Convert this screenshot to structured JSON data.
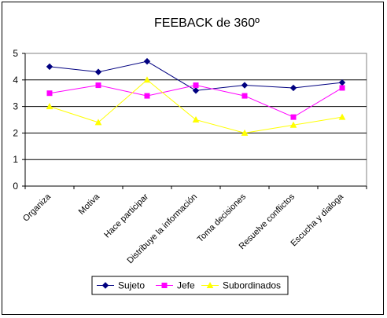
{
  "chart_data": {
    "type": "line",
    "title": "FEEBACK de 360º",
    "xlabel": "",
    "ylabel": "",
    "ylim": [
      0,
      5
    ],
    "yticks": [
      0,
      1,
      2,
      3,
      4,
      5
    ],
    "grid": true,
    "legend": "bottom",
    "categories": [
      "Organiza",
      "Motiva",
      "Hace participar",
      "Distribuye la información",
      "Toma decisiones",
      "Resuelve conflictos",
      "Escucha y dialoga"
    ],
    "series": [
      {
        "name": "Sujeto",
        "values": [
          4.5,
          4.3,
          4.7,
          3.6,
          3.8,
          3.7,
          3.9
        ],
        "color": "#000080",
        "marker": "diamond"
      },
      {
        "name": "Jefe",
        "values": [
          3.5,
          3.8,
          3.4,
          3.8,
          3.4,
          2.6,
          3.7
        ],
        "color": "#ff00ff",
        "marker": "square"
      },
      {
        "name": "Subordinados",
        "values": [
          3.0,
          2.4,
          4.0,
          2.5,
          2.0,
          2.3,
          2.6
        ],
        "color": "#ffff00",
        "marker": "triangle"
      }
    ]
  }
}
